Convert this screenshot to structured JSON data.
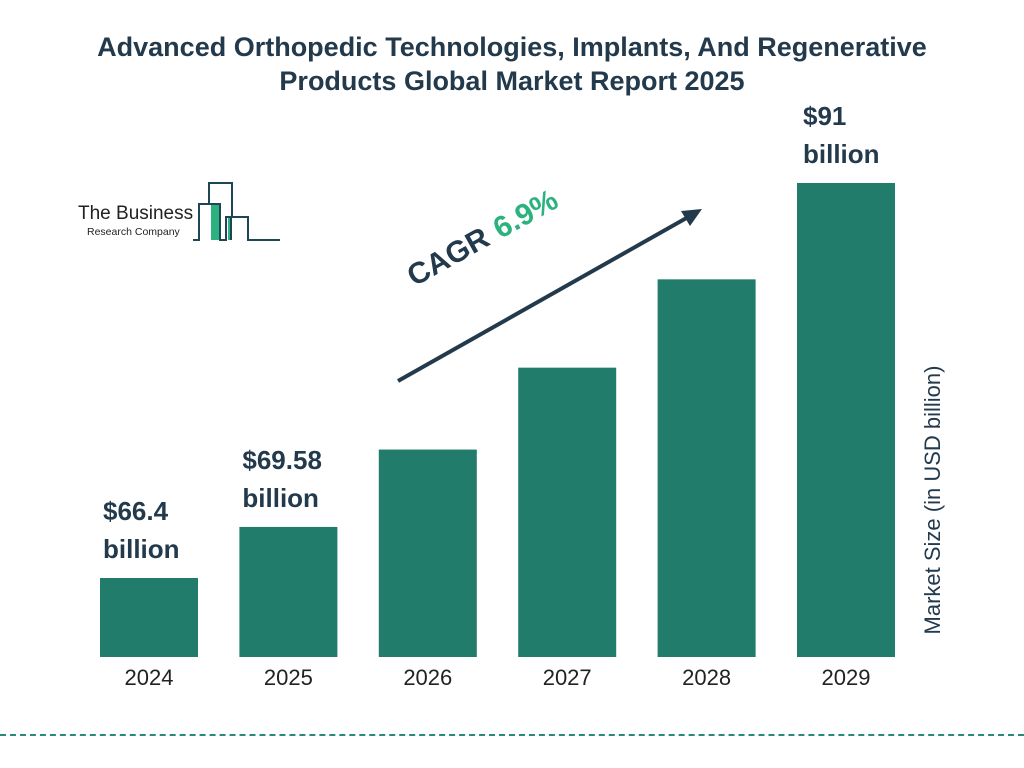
{
  "chart_data": {
    "type": "bar",
    "title": "Advanced Orthopedic Technologies, Implants, And Regenerative Products Global Market Report 2025",
    "categories": [
      "2024",
      "2025",
      "2026",
      "2027",
      "2028",
      "2029"
    ],
    "values": [
      66.4,
      69.58,
      74.4,
      79.5,
      85.0,
      91
    ],
    "data_labels": [
      "$66.4 billion",
      "$69.58 billion",
      "",
      "",
      "",
      "$91 billion"
    ],
    "data_labels_lines": [
      [
        "$66.4",
        "billion"
      ],
      [
        "$69.58",
        "billion"
      ],
      [],
      [],
      [],
      [
        "$91",
        "billion"
      ]
    ],
    "ylabel": "Market Size (in USD billion)",
    "xlabel": "",
    "grid": false,
    "bar_color": "#217c6c",
    "annotation": {
      "label": "CAGR",
      "value": "6.9%",
      "value_color": "#2bb27f"
    }
  },
  "logo": {
    "line1": "The Business",
    "line2": "Research Company",
    "accent": "#2bb27f"
  }
}
